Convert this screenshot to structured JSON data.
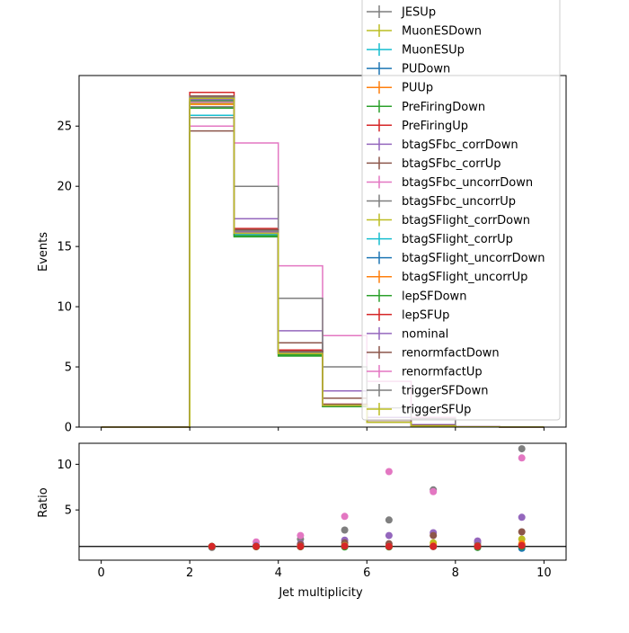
{
  "chart_data": [
    {
      "type": "line",
      "drawstyle": "steps-post",
      "ylabel": "Events",
      "xlim": [
        -0.5,
        10.5
      ],
      "ylim": [
        0,
        29.2
      ],
      "xticks": [
        0,
        2,
        4,
        6,
        8,
        10
      ],
      "yticks": [
        0,
        5,
        10,
        15,
        20,
        25
      ],
      "xtick_labels_shown": false,
      "bin_edges": [
        0,
        1,
        2,
        3,
        4,
        5,
        6,
        7,
        8,
        9,
        10
      ],
      "legend_position": "top-right",
      "series": [
        {
          "name": "JESUp",
          "color": "#7f7f7f",
          "values": [
            0,
            0,
            25.7,
            16.0,
            6.2,
            1.8,
            0.4,
            0.1,
            0.02,
            0.01
          ]
        },
        {
          "name": "MuonESDown",
          "color": "#bcbd22",
          "values": [
            0,
            0,
            26.9,
            16.1,
            6.1,
            1.8,
            0.4,
            0.1,
            0.02,
            0.01
          ]
        },
        {
          "name": "MuonESUp",
          "color": "#17becf",
          "values": [
            0,
            0,
            27.0,
            16.2,
            6.1,
            1.8,
            0.4,
            0.1,
            0.02,
            0.01
          ]
        },
        {
          "name": "PUDown",
          "color": "#1f77b4",
          "values": [
            0,
            0,
            27.2,
            16.3,
            6.2,
            1.8,
            0.4,
            0.1,
            0.02,
            0.01
          ]
        },
        {
          "name": "PUUp",
          "color": "#ff7f0e",
          "values": [
            0,
            0,
            26.8,
            16.0,
            6.0,
            1.8,
            0.4,
            0.1,
            0.02,
            0.01
          ]
        },
        {
          "name": "PreFiringDown",
          "color": "#2ca02c",
          "values": [
            0,
            0,
            26.5,
            15.9,
            6.0,
            1.7,
            0.4,
            0.1,
            0.02,
            0.01
          ]
        },
        {
          "name": "PreFiringUp",
          "color": "#d62728",
          "values": [
            0,
            0,
            27.8,
            16.5,
            6.4,
            1.9,
            0.4,
            0.1,
            0.02,
            0.01
          ]
        },
        {
          "name": "btagSFbc_corrDown",
          "color": "#9467bd",
          "values": [
            0,
            0,
            27.0,
            17.3,
            8.0,
            3.0,
            0.8,
            0.2,
            0.03,
            0.01
          ]
        },
        {
          "name": "btagSFbc_corrUp",
          "color": "#8c564b",
          "values": [
            0,
            0,
            24.6,
            16.3,
            7.0,
            2.4,
            0.6,
            0.15,
            0.03,
            0.01
          ]
        },
        {
          "name": "btagSFbc_uncorrDown",
          "color": "#e377c2",
          "values": [
            0,
            0,
            25.0,
            23.6,
            13.4,
            7.6,
            3.8,
            0.8,
            0.03,
            0.02
          ]
        },
        {
          "name": "btagSFbc_uncorrUp",
          "color": "#7f7f7f",
          "values": [
            0,
            0,
            26.6,
            20.0,
            10.7,
            5.0,
            1.6,
            0.7,
            0.03,
            0.02
          ]
        },
        {
          "name": "btagSFlight_corrDown",
          "color": "#bcbd22",
          "values": [
            0,
            0,
            27.1,
            16.2,
            6.2,
            1.8,
            0.4,
            0.1,
            0.02,
            0.01
          ]
        },
        {
          "name": "btagSFlight_corrUp",
          "color": "#17becf",
          "values": [
            0,
            0,
            25.9,
            16.0,
            6.1,
            1.8,
            0.4,
            0.1,
            0.02,
            0.01
          ]
        },
        {
          "name": "btagSFlight_uncorrDown",
          "color": "#1f77b4",
          "values": [
            0,
            0,
            27.3,
            16.3,
            6.2,
            1.8,
            0.4,
            0.1,
            0.02,
            0.01
          ]
        },
        {
          "name": "btagSFlight_uncorrUp",
          "color": "#ff7f0e",
          "values": [
            0,
            0,
            27.4,
            16.1,
            6.1,
            1.8,
            0.4,
            0.1,
            0.02,
            0.01
          ]
        },
        {
          "name": "lepSFDown",
          "color": "#2ca02c",
          "values": [
            0,
            0,
            27.1,
            15.8,
            5.9,
            1.7,
            0.4,
            0.1,
            0.02,
            0.01
          ]
        },
        {
          "name": "lepSFUp",
          "color": "#d62728",
          "values": [
            0,
            0,
            27.3,
            16.4,
            6.3,
            1.9,
            0.4,
            0.1,
            0.02,
            0.01
          ]
        },
        {
          "name": "nominal",
          "color": "#9467bd",
          "values": [
            0,
            0,
            27.2,
            16.2,
            6.1,
            1.8,
            0.4,
            0.1,
            0.02,
            0.01
          ]
        },
        {
          "name": "renormfactDown",
          "color": "#8c564b",
          "values": [
            0,
            0,
            27.5,
            16.4,
            6.3,
            1.9,
            0.4,
            0.1,
            0.02,
            0.01
          ]
        },
        {
          "name": "renormfactUp",
          "color": "#e377c2",
          "values": [
            0,
            0,
            27.0,
            16.1,
            6.1,
            1.8,
            0.4,
            0.1,
            0.02,
            0.01
          ]
        },
        {
          "name": "triggerSFDown",
          "color": "#7f7f7f",
          "values": [
            0,
            0,
            27.4,
            16.3,
            6.2,
            1.8,
            0.4,
            0.1,
            0.02,
            0.01
          ]
        },
        {
          "name": "triggerSFUp",
          "color": "#bcbd22",
          "values": [
            0,
            0,
            27.3,
            16.1,
            6.1,
            1.8,
            0.4,
            0.1,
            0.02,
            0.01
          ]
        }
      ]
    },
    {
      "type": "scatter",
      "xlabel": "Jet multiplicity",
      "ylabel": "Ratio",
      "xlim": [
        -0.5,
        10.5
      ],
      "ylim": [
        -0.5,
        12.3
      ],
      "xticks": [
        0,
        2,
        4,
        6,
        8,
        10
      ],
      "yticks": [
        5,
        10
      ],
      "reference_line_y": 1,
      "reference_line_color": "#000000",
      "x": [
        2.5,
        3.5,
        4.5,
        5.5,
        6.5,
        7.5,
        8.5,
        9.5
      ],
      "series": [
        {
          "color": "#7f7f7f",
          "values": [
            1.0,
            1.1,
            1.8,
            2.8,
            3.9,
            7.2,
            1.4,
            11.7
          ]
        },
        {
          "color": "#e377c2",
          "values": [
            1.0,
            1.5,
            2.2,
            4.3,
            9.2,
            7.0,
            1.6,
            10.7
          ]
        },
        {
          "color": "#9467bd",
          "values": [
            1.0,
            1.1,
            1.3,
            1.7,
            2.2,
            2.5,
            1.6,
            4.2
          ]
        },
        {
          "color": "#8c564b",
          "values": [
            0.9,
            1.0,
            1.2,
            1.4,
            1.3,
            2.2,
            1.1,
            2.6
          ]
        },
        {
          "color": "#bcbd22",
          "values": [
            1.0,
            1.0,
            1.0,
            1.1,
            1.0,
            1.4,
            1.0,
            1.8
          ]
        },
        {
          "color": "#17becf",
          "values": [
            0.95,
            1.0,
            1.0,
            1.0,
            1.0,
            1.0,
            0.9,
            1.2
          ]
        },
        {
          "color": "#1f77b4",
          "values": [
            1.0,
            1.0,
            1.0,
            1.0,
            1.0,
            1.0,
            1.0,
            0.8
          ]
        },
        {
          "color": "#ff7f0e",
          "values": [
            1.0,
            1.0,
            1.0,
            1.0,
            1.0,
            1.1,
            1.0,
            1.3
          ]
        },
        {
          "color": "#2ca02c",
          "values": [
            1.0,
            0.97,
            0.97,
            0.95,
            0.95,
            1.0,
            0.9,
            1.0
          ]
        },
        {
          "color": "#d62728",
          "values": [
            1.0,
            1.0,
            1.0,
            1.05,
            1.0,
            1.0,
            1.0,
            1.1
          ]
        }
      ]
    }
  ]
}
